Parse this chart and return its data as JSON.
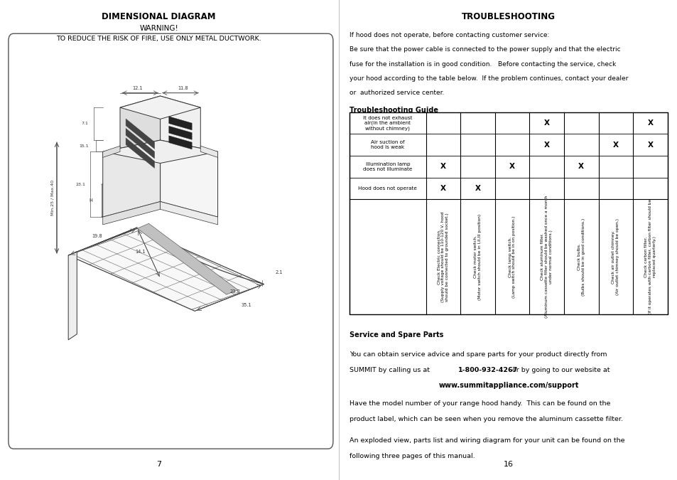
{
  "page_bg": "#ffffff",
  "left_title": "DIMENSIONAL DIAGRAM",
  "warning_line1": "WARNING!",
  "warning_line2": "TO REDUCE THE RISK OF FIRE, USE ONLY METAL DUCTWORK.",
  "page_num_left": "7",
  "page_num_right": "16",
  "right_title": "TROUBLESHOOTING",
  "para_lines": [
    "If hood does not operate, before contacting customer service:",
    "Be sure that the power cable is connected to the power supply and that the electric",
    "fuse for the installation is in good condition.   Before contacting the service, check",
    "your hood according to the table below.  If the problem continues, contact your dealer",
    "or  authorized service center."
  ],
  "trouble_guide_label": "Troubleshooting Guide",
  "col_headers": [
    "Check Electric connection.\n(Supply voltage should be 110-120 V, hood\nshould be connected to grounded socket.)",
    "Check motor switch.\n(Motor switch should be in I,II,III position)",
    "Check lamp switch.\n(Lamp switch should be in on position.)",
    "Check aluminum filter.\n(Aluminum cassette filter should be washed once a month\nunder normal conditions.)",
    "Check bulbs.\n(Bulbs should be in good conditions.)",
    "Check air outlet chimney.\n(Air outlet chimney should be open.)",
    "Check carbon filter.\n(If it operates with carbon filter, carbon filter should be\nreplaced quarterly.)"
  ],
  "row_labels": [
    "Hood does not operate",
    "Illumination lamp\ndoes not illuminate",
    "Air suction of\nhood is weak",
    "It does not exhaust\nair(in the ambient\nwithout chimney)"
  ],
  "table_data": [
    [
      true,
      true,
      false,
      false,
      false,
      false,
      false
    ],
    [
      true,
      false,
      true,
      false,
      true,
      false,
      false
    ],
    [
      false,
      false,
      false,
      true,
      false,
      true,
      true
    ],
    [
      false,
      false,
      false,
      true,
      false,
      false,
      true
    ]
  ],
  "service_title": "Service and Spare Parts",
  "service_line1a": "You can obtain service advice and spare parts for your product directly from",
  "service_line2a": "SUMMIT by calling us at ",
  "service_bold": "1-800-932-4267",
  "service_line2b": " or by going to our website at",
  "service_url": "www.summitappliance.com/support",
  "service_line3a": "Have the model number of your range hood handy.  This can be found on the",
  "service_line3b": "product label, which can be seen when you remove the aluminum cassette filter.",
  "service_line4a": "An exploded view, parts list and wiring diagram for your unit can be found on the",
  "service_line4b": "following three pages of this manual."
}
